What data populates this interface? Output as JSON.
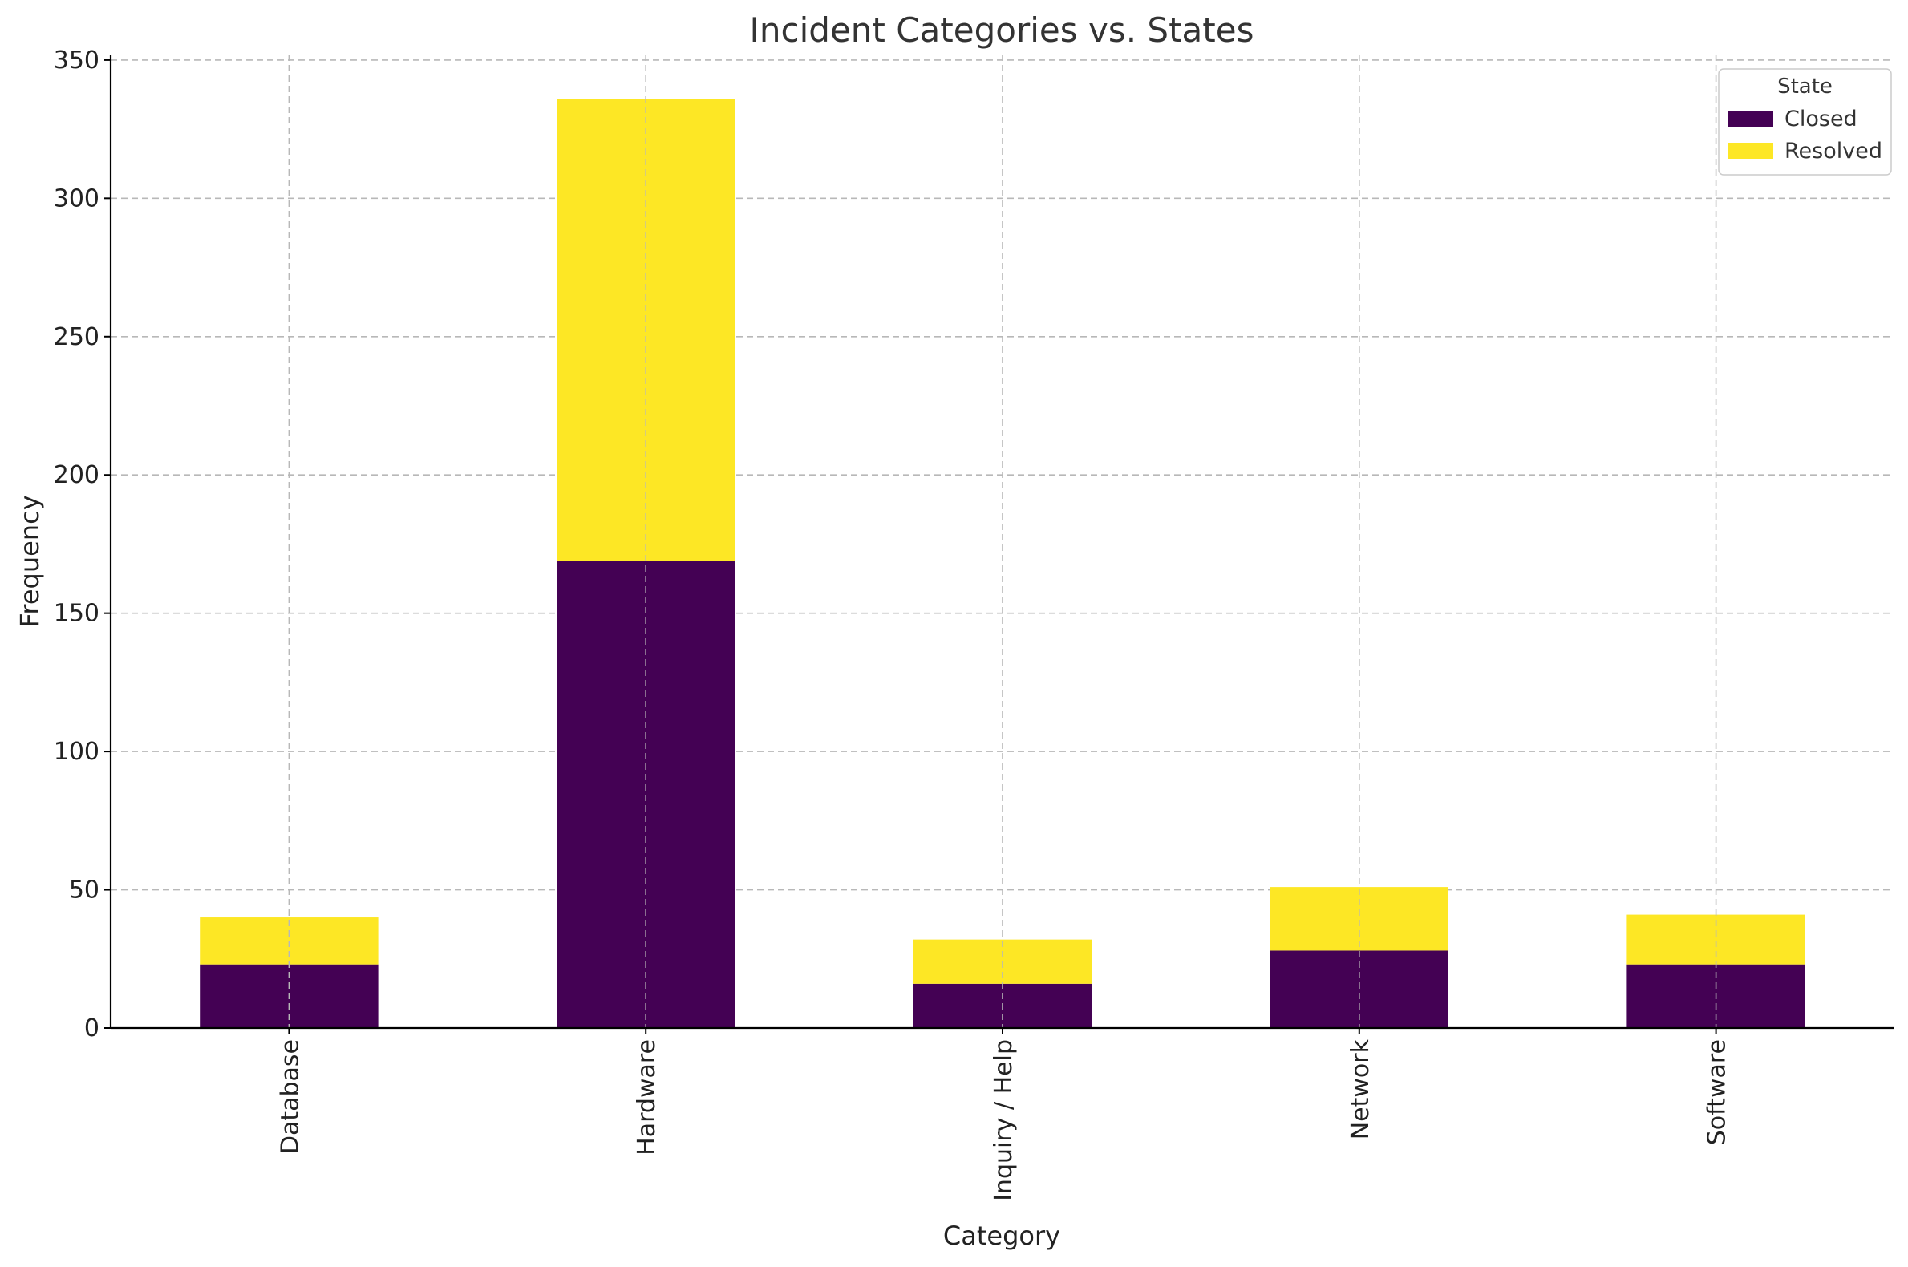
{
  "chart_data": {
    "type": "bar",
    "stacked": true,
    "title": "Incident Categories vs. States",
    "xlabel": "Category",
    "ylabel": "Frequency",
    "categories": [
      "Database",
      "Hardware",
      "Inquiry / Help",
      "Network",
      "Software"
    ],
    "series": [
      {
        "name": "Closed",
        "values": [
          23,
          169,
          16,
          28,
          23
        ],
        "color": "#440154"
      },
      {
        "name": "Resolved",
        "values": [
          17,
          167,
          16,
          23,
          18
        ],
        "color": "#fde725"
      }
    ],
    "ylim": [
      0,
      352
    ],
    "yticks": [
      0,
      50,
      100,
      150,
      200,
      250,
      300,
      350
    ],
    "grid": true,
    "legend": {
      "title": "State",
      "placement": "top-right"
    }
  }
}
